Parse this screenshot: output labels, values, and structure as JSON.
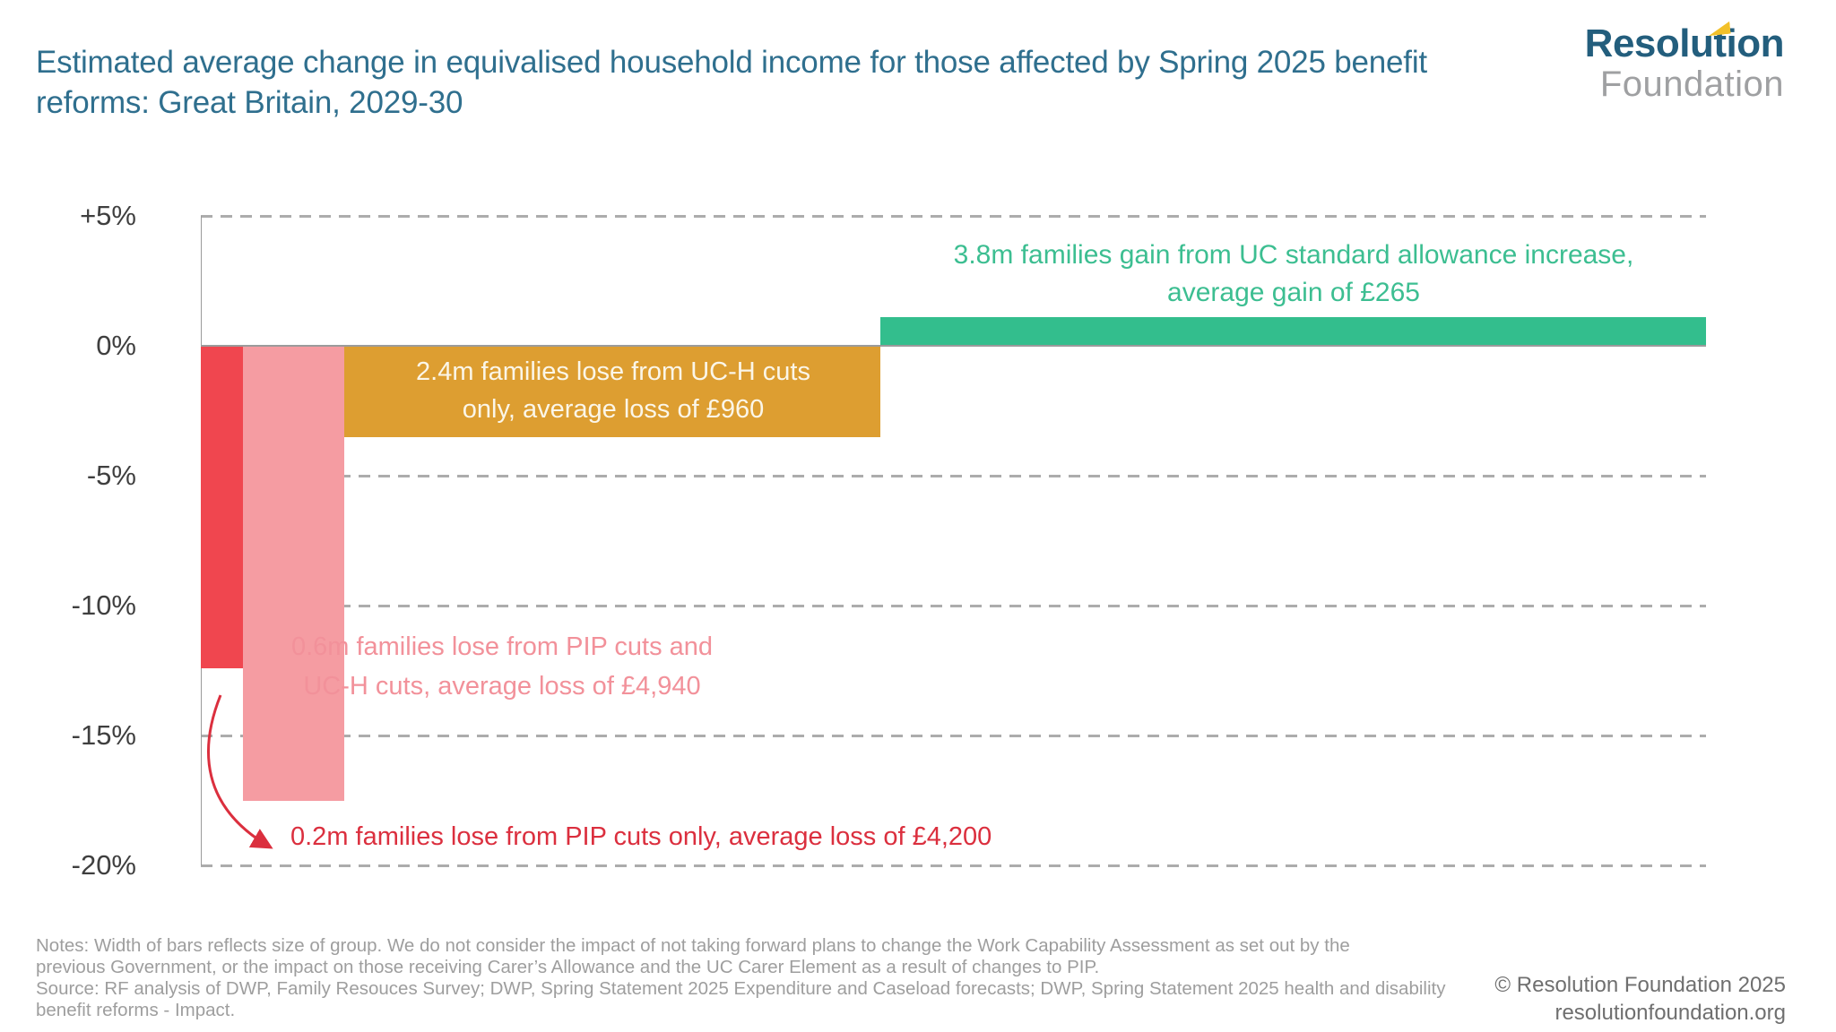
{
  "header": {
    "title": "Estimated average change in equivalised household income for those affected by Spring 2025 benefit reforms: Great Britain, 2029-30",
    "logo": {
      "word1": "Resolution",
      "word2": "Foundation",
      "brand_color": "#235E7D",
      "accent_color": "#F2C029",
      "gray_color": "#9FA0A2"
    }
  },
  "chart_data": {
    "type": "bar",
    "variant": "variable-width bars; bar width reflects size of group, bar height is average income change",
    "title": "Estimated average change in equivalised household income for those affected by Spring 2025 benefit reforms: Great Britain, 2029-30",
    "xlabel": "",
    "ylabel": "",
    "ylim": [
      -20,
      5
    ],
    "grid": "horizontal dashed gridlines every 5%, solid line at 0%, legend none",
    "y_ticks": [
      {
        "value": 5,
        "label": "+5%"
      },
      {
        "value": 0,
        "label": "0%"
      },
      {
        "value": -5,
        "label": "-5%"
      },
      {
        "value": -10,
        "label": "-10%"
      },
      {
        "value": -15,
        "label": "-15%"
      },
      {
        "value": -20,
        "label": "-20%"
      }
    ],
    "series": [
      {
        "slug": "pip-cuts-only",
        "group": "Lose from PIP cuts only",
        "families_millions": 0.2,
        "average_change_gbp": -4200,
        "income_change_pct": -12.4,
        "bar_width_fraction": 0.028,
        "color": "#F0464F",
        "annotation_color": "#DB2F3E",
        "annotation_lines": [
          "0.2m families lose from PIP cuts only, average loss of £4,200"
        ]
      },
      {
        "slug": "pip-and-uch-cuts",
        "group": "Lose from PIP cuts and UC-H cuts",
        "families_millions": 0.6,
        "average_change_gbp": -4940,
        "income_change_pct": -17.5,
        "bar_width_fraction": 0.0673,
        "color": "#F59CA2",
        "annotation_color": "#F2919A",
        "annotation_lines": [
          "0.6m families lose from PIP cuts and",
          "UC-H cuts, average loss of £4,940"
        ]
      },
      {
        "slug": "uch-cuts-only",
        "group": "Lose from UC-H cuts only",
        "families_millions": 2.4,
        "average_change_gbp": -960,
        "income_change_pct": -3.5,
        "bar_width_fraction": 0.3563,
        "color": "#DD9E31",
        "annotation_color": "#FBF6E8",
        "annotation_lines": [
          "2.4m families lose from UC-H cuts",
          "only, average loss of £960"
        ]
      },
      {
        "slug": "uc-standard-allowance-gain",
        "group": "Gain from UC standard allowance increase",
        "families_millions": 3.8,
        "average_change_gbp": 265,
        "income_change_pct": 1.1,
        "bar_width_fraction": 0.5482,
        "color": "#33BE8D",
        "annotation_color": "#3CBE91",
        "annotation_lines": [
          "3.8m families gain from UC standard allowance increase,",
          "average gain of £265"
        ]
      }
    ]
  },
  "footer": {
    "notes_lines": [
      "Notes: Width of bars reflects size of group. We do not consider the impact of not taking forward plans to change the Work Capability Assessment as set out by the",
      "previous Government, or the impact on those receiving Carer’s Allowance and the UC Carer Element as a result of changes to PIP.",
      "Source: RF analysis of DWP, Family Resouces Survey; DWP, Spring Statement 2025 Expenditure and Caseload forecasts; DWP, Spring Statement 2025 health and disability",
      "benefit reforms - Impact."
    ],
    "copyright_lines": [
      "© Resolution Foundation 2025",
      "resolutionfoundation.org"
    ]
  }
}
